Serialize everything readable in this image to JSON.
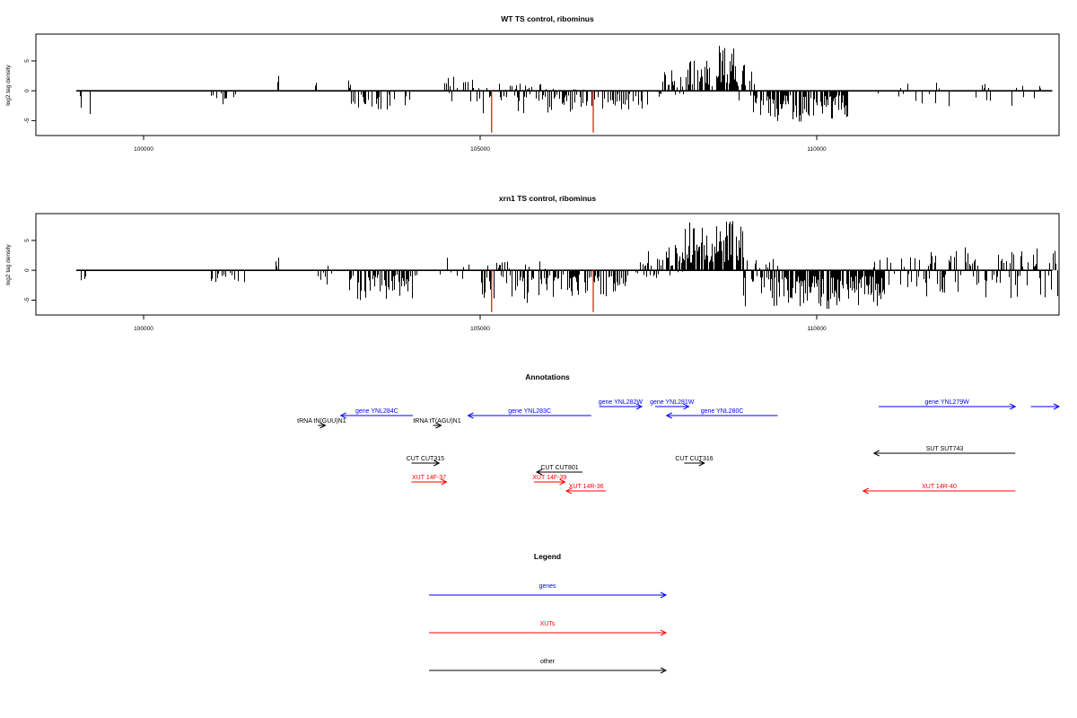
{
  "chart_data": [
    {
      "type": "bar",
      "title": "WT TS control, ribominus",
      "ylabel": "log2 tag density",
      "xlim": [
        98400,
        113600
      ],
      "ylim": [
        -7.5,
        9.5
      ],
      "x_ticks": [
        100000,
        105000,
        110000
      ],
      "y_ticks": [
        -5,
        0,
        5
      ],
      "colors": {
        "bars": "#000000",
        "highlight": "#ff0000"
      },
      "highlights": [
        {
          "x": 105170,
          "y": -7.0
        },
        {
          "x": 106680,
          "y": -7.0
        }
      ],
      "segments": [
        {
          "x0": 99050,
          "x1": 99200,
          "min": -4.3,
          "max": 0,
          "density": 0.5
        },
        {
          "x0": 100970,
          "x1": 101470,
          "min": -2.6,
          "max": 0,
          "density": 0.25
        },
        {
          "x0": 101970,
          "x1": 102000,
          "min": 0,
          "max": 2.8,
          "density": 0.6
        },
        {
          "x0": 102550,
          "x1": 102560,
          "min": 0,
          "max": 2.1,
          "density": 1
        },
        {
          "x0": 103040,
          "x1": 103060,
          "min": 0,
          "max": 2.1,
          "density": 1
        },
        {
          "x0": 103080,
          "x1": 104000,
          "min": -3.4,
          "max": 0,
          "density": 0.4
        },
        {
          "x0": 104400,
          "x1": 104980,
          "min": 0,
          "max": 2.4,
          "density": 0.15
        },
        {
          "x0": 104500,
          "x1": 105000,
          "min": -2.0,
          "max": 0,
          "density": 0.15
        },
        {
          "x0": 105040,
          "x1": 106600,
          "min": -3.8,
          "max": 1.2,
          "density": 0.45
        },
        {
          "x0": 106650,
          "x1": 107500,
          "min": -3.4,
          "max": 0,
          "density": 0.25
        },
        {
          "x0": 107600,
          "x1": 108050,
          "min": -1.2,
          "max": 3.5,
          "density": 0.45
        },
        {
          "x0": 108050,
          "x1": 108500,
          "min": 0,
          "max": 5.2,
          "density": 0.75
        },
        {
          "x0": 108500,
          "x1": 108800,
          "min": 0,
          "max": 8.0,
          "density": 0.85
        },
        {
          "x0": 108800,
          "x1": 109100,
          "min": -2.5,
          "max": 4.5,
          "density": 0.5
        },
        {
          "x0": 109050,
          "x1": 110450,
          "min": -5.2,
          "max": 0,
          "density": 0.75
        },
        {
          "x0": 110900,
          "x1": 113300,
          "min": -2.6,
          "max": 1.5,
          "density": 0.12
        },
        {
          "x0": 113300,
          "x1": 113320,
          "min": 0,
          "max": 2.3,
          "density": 1
        }
      ]
    },
    {
      "type": "bar",
      "title": "xrn1 TS control, ribominus",
      "ylabel": "log2 tag density",
      "xlim": [
        98400,
        113600
      ],
      "ylim": [
        -7.5,
        9.5
      ],
      "x_ticks": [
        100000,
        105000,
        110000
      ],
      "y_ticks": [
        -5,
        0,
        5
      ],
      "colors": {
        "bars": "#000000",
        "highlight": "#ff0000"
      },
      "highlights": [
        {
          "x": 105170,
          "y": -7.0
        },
        {
          "x": 106680,
          "y": -7.0
        }
      ],
      "segments": [
        {
          "x0": 99050,
          "x1": 99200,
          "min": -2.2,
          "max": 0,
          "density": 0.5
        },
        {
          "x0": 100970,
          "x1": 101500,
          "min": -3.0,
          "max": 0,
          "density": 0.25
        },
        {
          "x0": 101950,
          "x1": 102000,
          "min": 0,
          "max": 2.8,
          "density": 0.6
        },
        {
          "x0": 102500,
          "x1": 102800,
          "min": -2.4,
          "max": 2.1,
          "density": 0.2
        },
        {
          "x0": 103050,
          "x1": 104050,
          "min": -5.0,
          "max": 0,
          "density": 0.65
        },
        {
          "x0": 104350,
          "x1": 104950,
          "min": -2.0,
          "max": 2.5,
          "density": 0.2
        },
        {
          "x0": 105000,
          "x1": 106000,
          "min": -5.5,
          "max": 1.5,
          "density": 0.65
        },
        {
          "x0": 106000,
          "x1": 107200,
          "min": -4.8,
          "max": 0,
          "density": 0.45
        },
        {
          "x0": 107300,
          "x1": 108000,
          "min": -1.5,
          "max": 4.5,
          "density": 0.65
        },
        {
          "x0": 108000,
          "x1": 108900,
          "min": 0,
          "max": 8.5,
          "density": 0.9
        },
        {
          "x0": 108900,
          "x1": 109500,
          "min": -6.2,
          "max": 2.0,
          "density": 0.75
        },
        {
          "x0": 109500,
          "x1": 111000,
          "min": -6.5,
          "max": 0,
          "density": 0.85
        },
        {
          "x0": 110800,
          "x1": 111500,
          "min": -3.0,
          "max": 2.2,
          "density": 0.3
        },
        {
          "x0": 111500,
          "x1": 113600,
          "min": -4.8,
          "max": 4.0,
          "density": 0.45
        }
      ]
    }
  ],
  "annotations": {
    "title": "Annotations",
    "xlim": [
      98400,
      113600
    ],
    "items": [
      {
        "label": "gene YNL284C",
        "x_start": 104000,
        "x_end": 102930,
        "row": 1,
        "color": "#0000ff"
      },
      {
        "label": "gene YNL283C",
        "x_start": 106650,
        "x_end": 104820,
        "row": 1,
        "color": "#0000ff"
      },
      {
        "label": "gene YNL282W",
        "x_start": 106770,
        "x_end": 107400,
        "row": 0,
        "color": "#0000ff"
      },
      {
        "label": "gene YNL281W",
        "x_start": 107600,
        "x_end": 108100,
        "row": 0,
        "color": "#0000ff"
      },
      {
        "label": "gene YNL280C",
        "x_start": 109420,
        "x_end": 107770,
        "row": 1,
        "color": "#0000ff"
      },
      {
        "label": "gene YNL279W",
        "x_start": 110920,
        "x_end": 112950,
        "row": 0,
        "color": "#0000ff"
      },
      {
        "label": "",
        "x_start": 113180,
        "x_end": 113600,
        "row": 0,
        "color": "#0000ff"
      },
      {
        "label": "tRNA tN(GUU)N1",
        "x_start": 102590,
        "x_end": 102700,
        "row": 2,
        "color": "#000000"
      },
      {
        "label": "tRNA tT(AGU)N1",
        "x_start": 104300,
        "x_end": 104420,
        "row": 2,
        "color": "#000000"
      },
      {
        "label": "SUT SUT743",
        "x_start": 112950,
        "x_end": 110850,
        "row": 3,
        "color": "#000000"
      },
      {
        "label": "CUT CUT315",
        "x_start": 103980,
        "x_end": 104390,
        "row": 4,
        "color": "#000000"
      },
      {
        "label": "CUT CUT316",
        "x_start": 108030,
        "x_end": 108330,
        "row": 4,
        "color": "#000000"
      },
      {
        "label": "CUT CUT801",
        "x_start": 106520,
        "x_end": 105840,
        "row": 5,
        "color": "#000000"
      },
      {
        "label": "XUT 14F-37",
        "x_start": 103980,
        "x_end": 104500,
        "row": 6,
        "color": "#ff0000"
      },
      {
        "label": "XUT 14F-39",
        "x_start": 105800,
        "x_end": 106260,
        "row": 6,
        "color": "#ff0000"
      },
      {
        "label": "XUT 14R-36",
        "x_start": 106870,
        "x_end": 106280,
        "row": 7,
        "color": "#ff0000"
      },
      {
        "label": "XUT 14R-40",
        "x_start": 112950,
        "x_end": 110690,
        "row": 7,
        "color": "#ff0000"
      }
    ]
  },
  "legend": {
    "title": "Legend",
    "items": [
      {
        "label": "genes",
        "color": "#0000ff"
      },
      {
        "label": "XUTs",
        "color": "#ff0000"
      },
      {
        "label": "other",
        "color": "#000000"
      }
    ]
  }
}
